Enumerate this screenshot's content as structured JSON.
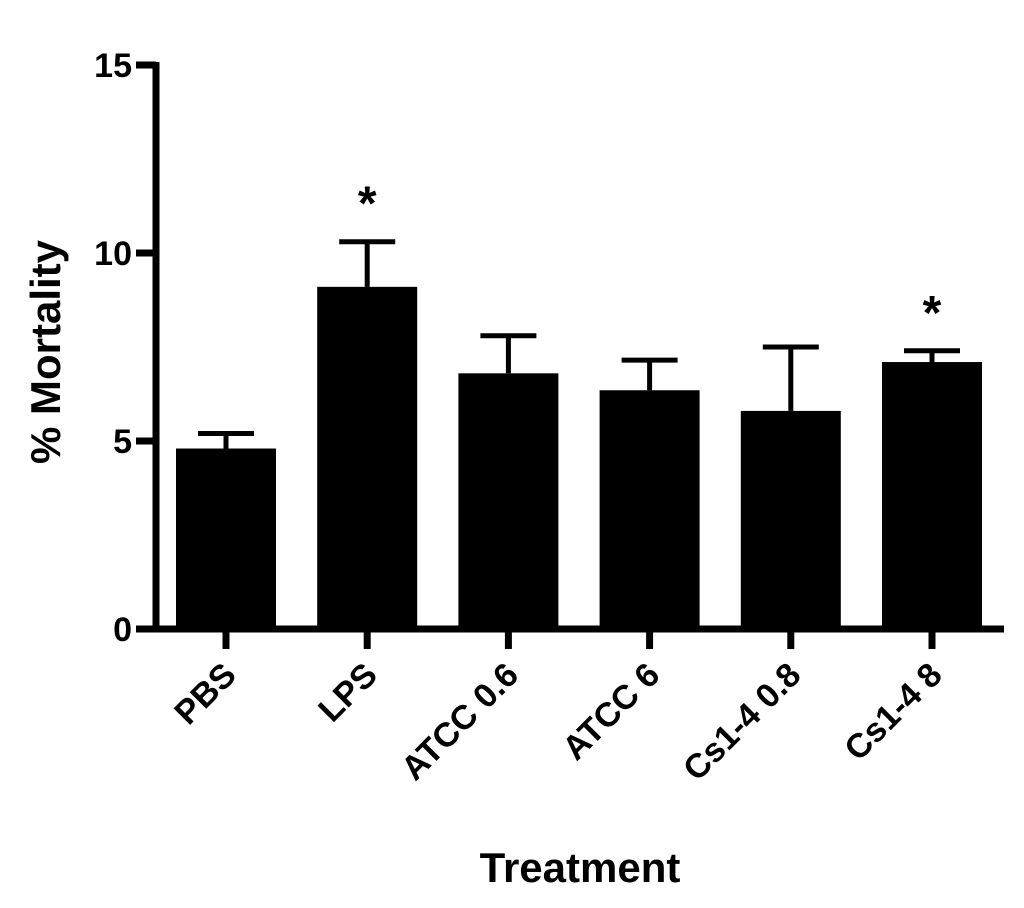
{
  "chart_data": {
    "type": "bar",
    "title": "",
    "xlabel": "Treatment",
    "ylabel": "% Mortality",
    "ylim": [
      0,
      15
    ],
    "yticks": [
      0,
      5,
      10,
      15
    ],
    "grid": false,
    "legend": "none",
    "categories": [
      "PBS",
      "LPS",
      "ATCC 0.6",
      "ATCC 6",
      "Cs1-4 0.8",
      "Cs1-4 8"
    ],
    "values": [
      4.8,
      9.1,
      6.8,
      6.35,
      5.8,
      7.1
    ],
    "error_upper": [
      0.4,
      1.2,
      1.0,
      0.8,
      1.7,
      0.3
    ],
    "annotations": [
      "",
      "*",
      "",
      "",
      "",
      "*"
    ],
    "bar_color": "#000000"
  }
}
